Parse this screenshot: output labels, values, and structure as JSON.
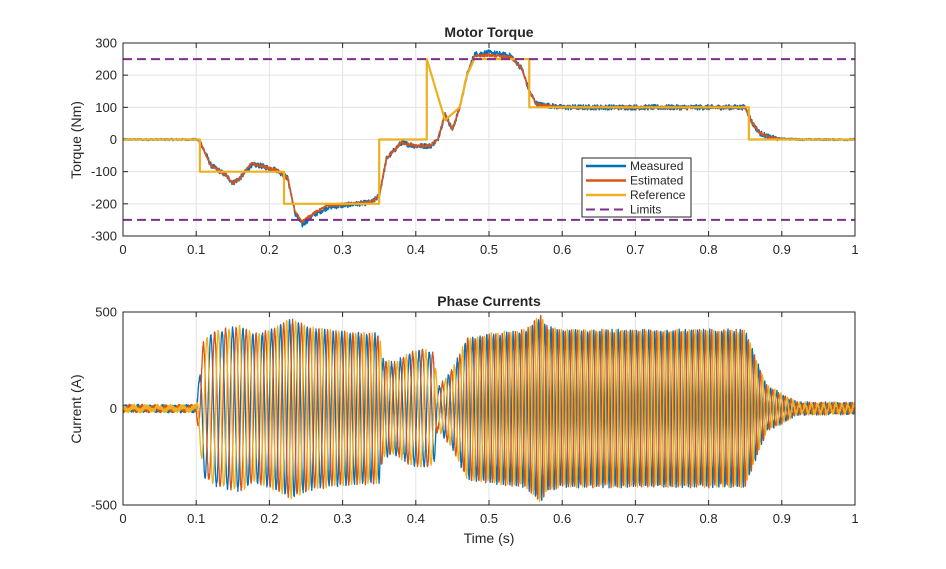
{
  "figure": {
    "background": "#ffffff"
  },
  "chart_data": [
    {
      "type": "line",
      "title": "Motor Torque",
      "xlabel": "",
      "ylabel": "Torque (Nm)",
      "xlim": [
        0,
        1
      ],
      "ylim": [
        -300,
        300
      ],
      "xticks": [
        0,
        0.1,
        0.2,
        0.3,
        0.4,
        0.5,
        0.6,
        0.7,
        0.8,
        0.9,
        1
      ],
      "xtick_labels": [
        "0",
        "0.1",
        "0.2",
        "0.3",
        "0.4",
        "0.5",
        "0.6",
        "0.7",
        "0.8",
        "0.9",
        "1"
      ],
      "yticks": [
        300,
        200,
        100,
        0,
        -100,
        -200,
        -300
      ],
      "ytick_labels": [
        "300",
        "200",
        "100",
        "0",
        "-100",
        "-200",
        "-300"
      ],
      "grid": true,
      "legend_position": "lower-right",
      "series": [
        {
          "name": "Measured",
          "color": "#0072BD",
          "noise": 8,
          "x": [
            0,
            0.1,
            0.105,
            0.12,
            0.14,
            0.15,
            0.16,
            0.175,
            0.185,
            0.21,
            0.225,
            0.235,
            0.245,
            0.26,
            0.28,
            0.34,
            0.35,
            0.36,
            0.38,
            0.4,
            0.42,
            0.43,
            0.44,
            0.45,
            0.46,
            0.47,
            0.48,
            0.5,
            0.53,
            0.545,
            0.555,
            0.565,
            0.6,
            0.7,
            0.8,
            0.85,
            0.86,
            0.87,
            0.885,
            0.9,
            0.93,
            1
          ],
          "y": [
            0,
            0,
            -5,
            -80,
            -110,
            -135,
            -120,
            -80,
            -80,
            -95,
            -120,
            -230,
            -265,
            -235,
            -210,
            -195,
            -175,
            -60,
            -10,
            -20,
            -20,
            0,
            80,
            30,
            100,
            200,
            265,
            270,
            260,
            220,
            150,
            110,
            100,
            100,
            100,
            100,
            50,
            20,
            5,
            2,
            0,
            0
          ]
        },
        {
          "name": "Estimated",
          "color": "#D95319",
          "noise": 4,
          "x": [
            0,
            0.1,
            0.105,
            0.12,
            0.14,
            0.15,
            0.16,
            0.175,
            0.185,
            0.21,
            0.225,
            0.235,
            0.245,
            0.26,
            0.28,
            0.34,
            0.35,
            0.36,
            0.38,
            0.4,
            0.42,
            0.43,
            0.44,
            0.45,
            0.46,
            0.47,
            0.48,
            0.5,
            0.53,
            0.545,
            0.555,
            0.565,
            0.6,
            0.7,
            0.8,
            0.85,
            0.86,
            0.87,
            0.885,
            0.9,
            0.93,
            1
          ],
          "y": [
            0,
            0,
            -5,
            -80,
            -110,
            -135,
            -120,
            -75,
            -80,
            -95,
            -120,
            -225,
            -255,
            -230,
            -205,
            -195,
            -175,
            -60,
            -10,
            -20,
            -20,
            0,
            80,
            30,
            100,
            200,
            260,
            262,
            255,
            220,
            150,
            110,
            100,
            100,
            100,
            100,
            50,
            20,
            5,
            2,
            0,
            0
          ]
        },
        {
          "name": "Reference",
          "color": "#EDB120",
          "noise": 0,
          "x": [
            0,
            0.105,
            0.105,
            0.22,
            0.22,
            0.35,
            0.35,
            0.415,
            0.415,
            0.44,
            0.46,
            0.47,
            0.48,
            0.555,
            0.555,
            0.855,
            0.855,
            1
          ],
          "y": [
            0,
            0,
            -100,
            -100,
            -200,
            -200,
            0,
            0,
            250,
            60,
            100,
            200,
            250,
            250,
            100,
            100,
            0,
            0
          ]
        },
        {
          "name": "Limits",
          "color": "#7E2F8E",
          "noise": 0,
          "dashed": true,
          "segments": [
            {
              "x": [
                0,
                1
              ],
              "y": [
                250,
                250
              ]
            },
            {
              "x": [
                0,
                1
              ],
              "y": [
                -250,
                -250
              ]
            }
          ]
        }
      ],
      "legend_entries": [
        "Measured",
        "Estimated",
        "Reference",
        "Limits"
      ]
    },
    {
      "type": "line",
      "title": "Phase Currents",
      "xlabel": "Time (s)",
      "ylabel": "Current (A)",
      "xlim": [
        0,
        1
      ],
      "ylim": [
        -500,
        500
      ],
      "xticks": [
        0,
        0.1,
        0.2,
        0.3,
        0.4,
        0.5,
        0.6,
        0.7,
        0.8,
        0.9,
        1
      ],
      "xtick_labels": [
        "0",
        "0.1",
        "0.2",
        "0.3",
        "0.4",
        "0.5",
        "0.6",
        "0.7",
        "0.8",
        "0.9",
        "1"
      ],
      "yticks": [
        500,
        0,
        -500
      ],
      "ytick_labels": [
        "500",
        "0",
        "-500"
      ],
      "grid": true,
      "phase_colors": [
        "#0072BD",
        "#D95319",
        "#EDB120"
      ],
      "amplitude_envelope": {
        "t": [
          0,
          0.1,
          0.11,
          0.13,
          0.16,
          0.18,
          0.2,
          0.23,
          0.24,
          0.26,
          0.3,
          0.35,
          0.355,
          0.37,
          0.39,
          0.41,
          0.425,
          0.43,
          0.45,
          0.47,
          0.5,
          0.55,
          0.57,
          0.58,
          0.6,
          0.7,
          0.8,
          0.85,
          0.87,
          0.88,
          0.9,
          0.92,
          1
        ],
        "amp": [
          10,
          10,
          350,
          400,
          420,
          380,
          400,
          460,
          440,
          410,
          390,
          380,
          250,
          230,
          280,
          300,
          280,
          100,
          200,
          360,
          380,
          400,
          480,
          420,
          400,
          400,
          400,
          400,
          200,
          110,
          70,
          25,
          20
        ]
      },
      "electrical_frequency_hz": {
        "t": [
          0,
          0.1,
          0.2,
          0.35,
          0.42,
          0.5,
          0.6,
          0.85,
          1
        ],
        "f": [
          60,
          60,
          80,
          90,
          70,
          110,
          120,
          120,
          120
        ]
      },
      "noise_floor": 12
    }
  ]
}
